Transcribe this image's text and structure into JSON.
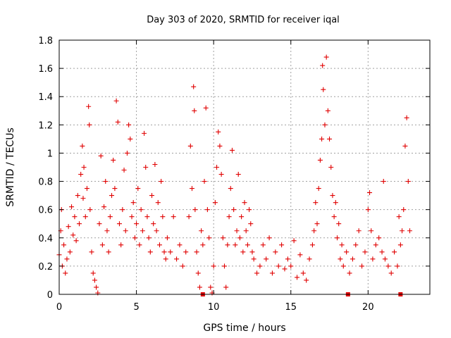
{
  "chart_data": {
    "type": "scatter",
    "title": "Day 303 of 2020, SRMTID for receiver iqal",
    "xlabel": "GPS time / hours",
    "ylabel": "SRMTID / TECUs",
    "xlim": [
      0,
      24
    ],
    "ylim": [
      0,
      1.8
    ],
    "x_ticks": [
      0,
      5,
      10,
      15,
      20
    ],
    "y_ticks": [
      0,
      0.2,
      0.4,
      0.6,
      0.8,
      1,
      1.2,
      1.4,
      1.6,
      1.8
    ],
    "x_tick_labels": [
      "0",
      "5",
      "10",
      "15",
      "20"
    ],
    "y_tick_labels": [
      "0",
      "0.2",
      "0.4",
      "0.6",
      "0.8",
      "1",
      "1.2",
      "1.4",
      "1.6",
      "1.8"
    ],
    "grid": true,
    "marker_color": "#e00000",
    "series": [
      {
        "name": "SRMTID",
        "marker": "plus",
        "note": "dense sampled envelope of the plotted points",
        "points": [
          [
            0.0,
            0.28
          ],
          [
            0.1,
            0.45
          ],
          [
            0.15,
            0.6
          ],
          [
            0.2,
            0.2
          ],
          [
            0.3,
            0.35
          ],
          [
            0.4,
            0.15
          ],
          [
            0.5,
            0.25
          ],
          [
            0.6,
            0.48
          ],
          [
            0.7,
            0.3
          ],
          [
            0.8,
            0.62
          ],
          [
            0.9,
            0.42
          ],
          [
            1.0,
            0.55
          ],
          [
            1.1,
            0.38
          ],
          [
            1.2,
            0.7
          ],
          [
            1.3,
            0.5
          ],
          [
            1.4,
            0.85
          ],
          [
            1.5,
            1.05
          ],
          [
            1.55,
            0.68
          ],
          [
            1.6,
            0.9
          ],
          [
            1.7,
            0.55
          ],
          [
            1.8,
            0.75
          ],
          [
            1.9,
            1.33
          ],
          [
            1.95,
            1.2
          ],
          [
            2.0,
            0.6
          ],
          [
            2.1,
            0.3
          ],
          [
            2.2,
            0.15
          ],
          [
            2.3,
            0.1
          ],
          [
            2.4,
            0.05
          ],
          [
            2.5,
            0.01
          ],
          [
            2.6,
            0.5
          ],
          [
            2.7,
            0.98
          ],
          [
            2.8,
            0.35
          ],
          [
            2.9,
            0.62
          ],
          [
            3.0,
            0.8
          ],
          [
            3.1,
            0.45
          ],
          [
            3.2,
            0.3
          ],
          [
            3.3,
            0.55
          ],
          [
            3.4,
            0.7
          ],
          [
            3.5,
            0.95
          ],
          [
            3.6,
            0.75
          ],
          [
            3.7,
            1.37
          ],
          [
            3.8,
            1.22
          ],
          [
            3.9,
            0.5
          ],
          [
            4.0,
            0.35
          ],
          [
            4.1,
            0.6
          ],
          [
            4.2,
            0.88
          ],
          [
            4.3,
            0.45
          ],
          [
            4.4,
            1.0
          ],
          [
            4.5,
            1.2
          ],
          [
            4.6,
            1.1
          ],
          [
            4.7,
            0.55
          ],
          [
            4.8,
            0.65
          ],
          [
            4.9,
            0.4
          ],
          [
            5.0,
            0.5
          ],
          [
            5.1,
            0.75
          ],
          [
            5.2,
            0.35
          ],
          [
            5.3,
            0.6
          ],
          [
            5.4,
            0.45
          ],
          [
            5.5,
            1.14
          ],
          [
            5.6,
            0.9
          ],
          [
            5.7,
            0.55
          ],
          [
            5.8,
            0.4
          ],
          [
            5.9,
            0.3
          ],
          [
            6.0,
            0.7
          ],
          [
            6.1,
            0.5
          ],
          [
            6.2,
            0.92
          ],
          [
            6.3,
            0.45
          ],
          [
            6.4,
            0.65
          ],
          [
            6.5,
            0.35
          ],
          [
            6.6,
            0.8
          ],
          [
            6.7,
            0.55
          ],
          [
            6.8,
            0.3
          ],
          [
            6.9,
            0.25
          ],
          [
            7.0,
            0.4
          ],
          [
            7.2,
            0.3
          ],
          [
            7.4,
            0.55
          ],
          [
            7.6,
            0.25
          ],
          [
            7.8,
            0.35
          ],
          [
            8.0,
            0.2
          ],
          [
            8.2,
            0.3
          ],
          [
            8.4,
            0.55
          ],
          [
            8.5,
            1.05
          ],
          [
            8.6,
            0.75
          ],
          [
            8.7,
            1.47
          ],
          [
            8.75,
            1.3
          ],
          [
            8.8,
            0.6
          ],
          [
            8.9,
            0.3
          ],
          [
            9.0,
            0.15
          ],
          [
            9.1,
            0.05
          ],
          [
            9.2,
            0.45
          ],
          [
            9.3,
            0.35
          ],
          [
            9.4,
            0.8
          ],
          [
            9.5,
            1.32
          ],
          [
            9.6,
            0.6
          ],
          [
            9.7,
            0.4
          ],
          [
            9.8,
            0.05
          ],
          [
            9.9,
            0.01
          ],
          [
            10.0,
            0.2
          ],
          [
            10.1,
            0.65
          ],
          [
            10.2,
            0.9
          ],
          [
            10.3,
            1.15
          ],
          [
            10.4,
            1.05
          ],
          [
            10.5,
            0.85
          ],
          [
            10.6,
            0.4
          ],
          [
            10.7,
            0.2
          ],
          [
            10.8,
            0.05
          ],
          [
            10.9,
            0.35
          ],
          [
            11.0,
            0.55
          ],
          [
            11.1,
            0.75
          ],
          [
            11.2,
            1.02
          ],
          [
            11.3,
            0.6
          ],
          [
            11.4,
            0.35
          ],
          [
            11.5,
            0.45
          ],
          [
            11.6,
            0.85
          ],
          [
            11.7,
            0.4
          ],
          [
            11.8,
            0.55
          ],
          [
            11.9,
            0.3
          ],
          [
            12.0,
            0.65
          ],
          [
            12.1,
            0.45
          ],
          [
            12.2,
            0.35
          ],
          [
            12.3,
            0.6
          ],
          [
            12.4,
            0.5
          ],
          [
            12.5,
            0.3
          ],
          [
            12.6,
            0.25
          ],
          [
            12.8,
            0.15
          ],
          [
            13.0,
            0.2
          ],
          [
            13.2,
            0.35
          ],
          [
            13.4,
            0.25
          ],
          [
            13.6,
            0.4
          ],
          [
            13.8,
            0.15
          ],
          [
            14.0,
            0.3
          ],
          [
            14.2,
            0.2
          ],
          [
            14.4,
            0.35
          ],
          [
            14.6,
            0.18
          ],
          [
            14.8,
            0.25
          ],
          [
            15.0,
            0.2
          ],
          [
            15.2,
            0.38
          ],
          [
            15.4,
            0.12
          ],
          [
            15.6,
            0.28
          ],
          [
            15.8,
            0.15
          ],
          [
            16.0,
            0.1
          ],
          [
            16.2,
            0.25
          ],
          [
            16.4,
            0.35
          ],
          [
            16.5,
            0.45
          ],
          [
            16.6,
            0.65
          ],
          [
            16.7,
            0.5
          ],
          [
            16.8,
            0.75
          ],
          [
            16.9,
            0.95
          ],
          [
            17.0,
            1.1
          ],
          [
            17.05,
            1.62
          ],
          [
            17.1,
            1.45
          ],
          [
            17.2,
            1.2
          ],
          [
            17.3,
            1.68
          ],
          [
            17.4,
            1.3
          ],
          [
            17.5,
            1.1
          ],
          [
            17.6,
            0.9
          ],
          [
            17.7,
            0.7
          ],
          [
            17.8,
            0.55
          ],
          [
            17.9,
            0.65
          ],
          [
            18.0,
            0.4
          ],
          [
            18.1,
            0.5
          ],
          [
            18.2,
            0.25
          ],
          [
            18.3,
            0.35
          ],
          [
            18.4,
            0.2
          ],
          [
            18.6,
            0.3
          ],
          [
            18.8,
            0.15
          ],
          [
            19.0,
            0.25
          ],
          [
            19.2,
            0.35
          ],
          [
            19.4,
            0.45
          ],
          [
            19.6,
            0.2
          ],
          [
            19.8,
            0.3
          ],
          [
            20.0,
            0.6
          ],
          [
            20.1,
            0.72
          ],
          [
            20.2,
            0.45
          ],
          [
            20.3,
            0.25
          ],
          [
            20.5,
            0.35
          ],
          [
            20.7,
            0.4
          ],
          [
            20.9,
            0.3
          ],
          [
            21.0,
            0.8
          ],
          [
            21.1,
            0.25
          ],
          [
            21.3,
            0.2
          ],
          [
            21.5,
            0.15
          ],
          [
            21.7,
            0.3
          ],
          [
            21.9,
            0.2
          ],
          [
            22.0,
            0.55
          ],
          [
            22.1,
            0.35
          ],
          [
            22.2,
            0.45
          ],
          [
            22.3,
            0.6
          ],
          [
            22.4,
            1.05
          ],
          [
            22.5,
            1.25
          ],
          [
            22.6,
            0.8
          ],
          [
            22.7,
            0.45
          ]
        ]
      },
      {
        "name": "zero markers",
        "marker": "square",
        "points": [
          [
            9.3,
            0
          ],
          [
            18.7,
            0
          ],
          [
            22.1,
            0
          ]
        ]
      }
    ]
  }
}
